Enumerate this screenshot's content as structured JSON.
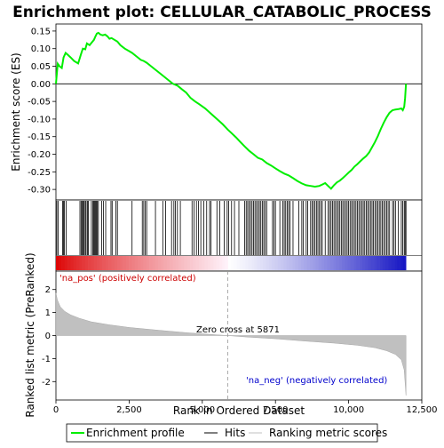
{
  "chart_data": {
    "type": "line",
    "title": "Enrichment plot: CELLULAR_CATABOLIC_PROCESS",
    "top_panel": {
      "ylabel": "Enrichment score (ES)",
      "ylim": [
        -0.33,
        0.17
      ],
      "yticks": [
        0.15,
        0.1,
        0.05,
        0.0,
        -0.05,
        -0.1,
        -0.15,
        -0.2,
        -0.25,
        -0.3
      ],
      "ytick_labels": [
        "0.15",
        "0.10",
        "0.05",
        "0.00",
        "-0.05",
        "-0.10",
        "-0.15",
        "-0.20",
        "-0.25",
        "-0.30"
      ],
      "series": [
        {
          "name": "Enrichment profile",
          "color": "#00ee00",
          "x": [
            0,
            60,
            120,
            200,
            260,
            330,
            400,
            500,
            620,
            760,
            860,
            920,
            1000,
            1060,
            1150,
            1230,
            1300,
            1350,
            1400,
            1450,
            1520,
            1600,
            1680,
            1760,
            1830,
            1900,
            2000,
            2100,
            2200,
            2350,
            2500,
            2600,
            2750,
            2900,
            3000,
            3100,
            3250,
            3400,
            3550,
            3700,
            3850,
            4000,
            4150,
            4300,
            4450,
            4600,
            4750,
            4900,
            5100,
            5300,
            5500,
            5700,
            5871,
            6000,
            6150,
            6300,
            6450,
            6600,
            6750,
            6900,
            7050,
            7200,
            7350,
            7500,
            7650,
            7800,
            7950,
            8100,
            8250,
            8400,
            8550,
            8700,
            8850,
            9000,
            9100,
            9200,
            9300,
            9400,
            9500,
            9600,
            9700,
            9800,
            9900,
            10000,
            10100,
            10200,
            10300,
            10400,
            10500,
            10600,
            10700,
            10800,
            10900,
            11000,
            11100,
            11200,
            11300,
            11400,
            11500,
            11600,
            11700,
            11800,
            11850,
            11900,
            11930,
            11960
          ],
          "values": [
            0.0,
            0.057,
            0.05,
            0.045,
            0.075,
            0.088,
            0.083,
            0.075,
            0.065,
            0.058,
            0.085,
            0.1,
            0.098,
            0.115,
            0.11,
            0.118,
            0.125,
            0.135,
            0.143,
            0.145,
            0.14,
            0.138,
            0.14,
            0.135,
            0.128,
            0.13,
            0.125,
            0.12,
            0.11,
            0.1,
            0.093,
            0.088,
            0.078,
            0.068,
            0.065,
            0.06,
            0.05,
            0.04,
            0.03,
            0.02,
            0.01,
            0.0,
            -0.005,
            -0.015,
            -0.025,
            -0.04,
            -0.05,
            -0.058,
            -0.07,
            -0.085,
            -0.1,
            -0.115,
            -0.13,
            -0.14,
            -0.152,
            -0.165,
            -0.178,
            -0.19,
            -0.2,
            -0.21,
            -0.215,
            -0.225,
            -0.232,
            -0.24,
            -0.248,
            -0.255,
            -0.26,
            -0.268,
            -0.276,
            -0.283,
            -0.288,
            -0.29,
            -0.292,
            -0.29,
            -0.286,
            -0.282,
            -0.29,
            -0.298,
            -0.288,
            -0.28,
            -0.275,
            -0.268,
            -0.26,
            -0.252,
            -0.245,
            -0.235,
            -0.228,
            -0.22,
            -0.212,
            -0.205,
            -0.195,
            -0.18,
            -0.165,
            -0.148,
            -0.128,
            -0.11,
            -0.095,
            -0.082,
            -0.075,
            -0.073,
            -0.072,
            -0.07,
            -0.075,
            -0.065,
            -0.04,
            0.0
          ]
        }
      ]
    },
    "hits_panel": {
      "legend_name": "Hits",
      "positions": [
        30,
        80,
        230,
        260,
        290,
        350,
        820,
        860,
        900,
        930,
        960,
        1000,
        1030,
        1080,
        1110,
        1210,
        1260,
        1290,
        1320,
        1350,
        1380,
        1410,
        1450,
        1560,
        1620,
        1700,
        1880,
        1920,
        2050,
        2100,
        2600,
        2950,
        3000,
        3050,
        3100,
        3400,
        3650,
        3750,
        3950,
        4030,
        4080,
        4150,
        4250,
        4650,
        4720,
        4800,
        4870,
        4950,
        5050,
        5150,
        5250,
        5300,
        5500,
        5600,
        5750,
        5850,
        5900,
        6000,
        6100,
        6250,
        6450,
        6500,
        6550,
        6600,
        6650,
        6700,
        6750,
        6800,
        6850,
        6900,
        6950,
        7000,
        7050,
        7100,
        7150,
        7200,
        7400,
        7450,
        7500,
        7650,
        7750,
        7800,
        7850,
        7900,
        7950,
        8000,
        8100,
        8300,
        8400,
        8450,
        8550,
        8600,
        8700,
        8750,
        8800,
        8850,
        8900,
        8950,
        9000,
        9050,
        9100,
        9200,
        9300,
        9350,
        9400,
        9450,
        9500,
        9550,
        9600,
        9650,
        9700,
        9750,
        9800,
        9850,
        9900,
        9950,
        10000,
        10050,
        10100,
        10150,
        10200,
        10250,
        10300,
        10350,
        10400,
        10450,
        10500,
        10550,
        10600,
        10650,
        10700,
        10750,
        10800,
        10850,
        10900,
        10950,
        11000,
        11050,
        11100,
        11150,
        11200,
        11250,
        11300,
        11350,
        11400,
        11500,
        11550,
        11600,
        11700,
        11800,
        11850,
        11900,
        11930,
        11960
      ]
    },
    "metric_panel": {
      "legend_name": "Ranking metric scores",
      "ylabel": "Ranked list metric (PreRanked)",
      "ylim": [
        -2.8,
        2.8
      ],
      "yticks": [
        2,
        1,
        0,
        -1,
        -2
      ],
      "ytick_labels": [
        "2",
        "1",
        "0",
        "-1",
        "-2"
      ],
      "x": [
        0,
        50,
        150,
        300,
        500,
        800,
        1200,
        1800,
        2500,
        3500,
        4500,
        5500,
        5871,
        6500,
        7500,
        8500,
        9500,
        10300,
        10900,
        11300,
        11600,
        11800,
        11900,
        11960
      ],
      "values": [
        1.85,
        1.55,
        1.25,
        1.05,
        0.9,
        0.75,
        0.6,
        0.47,
        0.35,
        0.23,
        0.12,
        0.03,
        0.0,
        -0.06,
        -0.14,
        -0.24,
        -0.33,
        -0.42,
        -0.53,
        -0.66,
        -0.82,
        -1.05,
        -1.5,
        -2.6
      ],
      "zero_cross_label": "Zero cross at 5871",
      "zero_cross_x": 5871,
      "pos_label": "'na_pos' (positively correlated)",
      "neg_label": "'na_neg' (negatively correlated)"
    },
    "xlabel": "Rank in Ordered Dataset",
    "xlim": [
      0,
      12500
    ],
    "xticks": [
      0,
      2500,
      5000,
      7500,
      10000,
      12500
    ],
    "xtick_labels": [
      "0",
      "2,500",
      "5,000",
      "7,500",
      "10,000",
      "12,500"
    ],
    "legend": [
      "Enrichment profile",
      "Hits",
      "Ranking metric scores"
    ],
    "colors": {
      "profile": "#00ee00",
      "hits": "#000000",
      "metric_fill": "#c0c0c0",
      "pos_label": "#cc0000",
      "neg_label": "#0000cc",
      "zero_line": "#999999"
    }
  }
}
